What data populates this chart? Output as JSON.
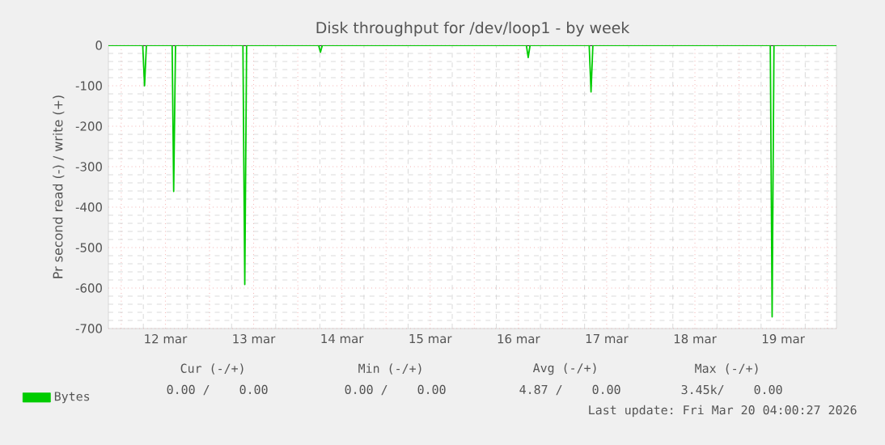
{
  "chart_data": {
    "type": "line",
    "title": "Disk throughput for /dev/loop1 - by week",
    "ylabel": "Pr second read (-) / write (+)",
    "x": [
      "2026-03-11T20:30",
      "2026-03-12T05:50",
      "2026-03-12T06:20",
      "2026-03-12T06:50",
      "2026-03-12T13:50",
      "2026-03-12T14:15",
      "2026-03-12T14:45",
      "2026-03-13T09:05",
      "2026-03-13T09:35",
      "2026-03-13T10:05",
      "2026-03-14T05:40",
      "2026-03-14T06:10",
      "2026-03-14T06:40",
      "2026-03-16T14:10",
      "2026-03-16T14:40",
      "2026-03-16T15:10",
      "2026-03-17T07:15",
      "2026-03-17T07:45",
      "2026-03-17T08:15",
      "2026-03-19T08:30",
      "2026-03-19T09:00",
      "2026-03-19T09:30",
      "2026-03-20T02:30"
    ],
    "series": [
      {
        "name": "Bytes",
        "color": "#00cc00",
        "values": [
          0,
          0,
          -100,
          0,
          0,
          -361,
          0,
          0,
          -591,
          0,
          0,
          -17,
          0,
          0,
          -30,
          0,
          0,
          -115,
          0,
          0,
          -671,
          0,
          0
        ]
      }
    ],
    "xlim": [
      "2026-03-11T20:30",
      "2026-03-20T02:30"
    ],
    "xticks": [
      {
        "value": "2026-03-12T00:00",
        "label": null
      },
      {
        "value": "2026-03-12T12:00",
        "label": "12 mar"
      },
      {
        "value": "2026-03-13T00:00",
        "label": null
      },
      {
        "value": "2026-03-13T12:00",
        "label": "13 mar"
      },
      {
        "value": "2026-03-14T00:00",
        "label": null
      },
      {
        "value": "2026-03-14T12:00",
        "label": "14 mar"
      },
      {
        "value": "2026-03-15T00:00",
        "label": null
      },
      {
        "value": "2026-03-15T12:00",
        "label": "15 mar"
      },
      {
        "value": "2026-03-16T00:00",
        "label": null
      },
      {
        "value": "2026-03-16T12:00",
        "label": "16 mar"
      },
      {
        "value": "2026-03-17T00:00",
        "label": null
      },
      {
        "value": "2026-03-17T12:00",
        "label": "17 mar"
      },
      {
        "value": "2026-03-18T00:00",
        "label": null
      },
      {
        "value": "2026-03-18T12:00",
        "label": "18 mar"
      },
      {
        "value": "2026-03-19T00:00",
        "label": null
      },
      {
        "value": "2026-03-19T12:00",
        "label": "19 mar"
      },
      {
        "value": "2026-03-20T00:00",
        "label": null
      }
    ],
    "ylim": [
      -700,
      0
    ],
    "yticks": [
      -700,
      -600,
      -500,
      -400,
      -300,
      -200,
      -100,
      0
    ],
    "grid": true,
    "legend": "bottom",
    "marker": "none",
    "line_style": "solid",
    "annotations": [
      "Cur (-/+)",
      "Min (-/+)",
      "Avg (-/+)",
      "Max (-/+)",
      "0.00 /    0.00",
      "0.00 /    0.00",
      "4.87 /    0.00",
      "3.45k/    0.00",
      "Last update: Fri Mar 20 04:00:27 2026"
    ]
  }
}
